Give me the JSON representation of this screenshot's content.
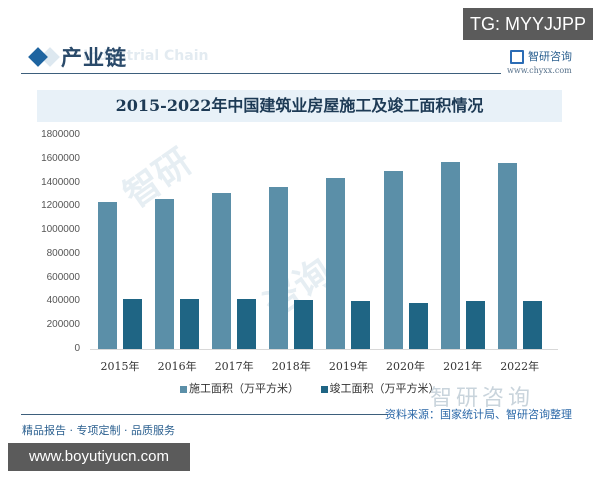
{
  "top_badge": "TG: MYYJJPP",
  "header": {
    "title": "产业链",
    "subtitle_watermark": "Industrial Chain",
    "logo_name": "智研咨询",
    "logo_url": "www.chyxx.com"
  },
  "chart_data": {
    "type": "bar",
    "title": "2015-2022年中国建筑业房屋施工及竣工面积情况",
    "xlabel": "",
    "ylabel": "",
    "categories": [
      "2015年",
      "2016年",
      "2017年",
      "2018年",
      "2019年",
      "2020年",
      "2021年",
      "2022年"
    ],
    "series": [
      {
        "name": "施工面积（万平方米）",
        "color": "#5b8fa8",
        "values": [
          1239718,
          1264220,
          1310000,
          1363000,
          1441000,
          1495000,
          1575000,
          1567000
        ]
      },
      {
        "name": "竣工面积（万平方米）",
        "color": "#1f6584",
        "values": [
          420785,
          422375,
          419074,
          413509,
          402410,
          384820,
          405000,
          400000
        ]
      }
    ],
    "yticks": [
      "0",
      "200000",
      "400000",
      "600000",
      "800000",
      "1000000",
      "1200000",
      "1400000",
      "1600000",
      "1800000"
    ],
    "ylim": [
      0,
      1800000
    ],
    "grid": false,
    "legend_position": "bottom"
  },
  "legend": {
    "items": [
      "施工面积（万平方米）",
      "竣工面积（万平方米）"
    ]
  },
  "footer": {
    "slogan": "精品报告 · 专项定制 · 品质服务",
    "source": "资料来源：国家统计局、智研咨询整理",
    "watermark": "智研咨询"
  },
  "bottom_badge": "www.boyutiyucn.com"
}
